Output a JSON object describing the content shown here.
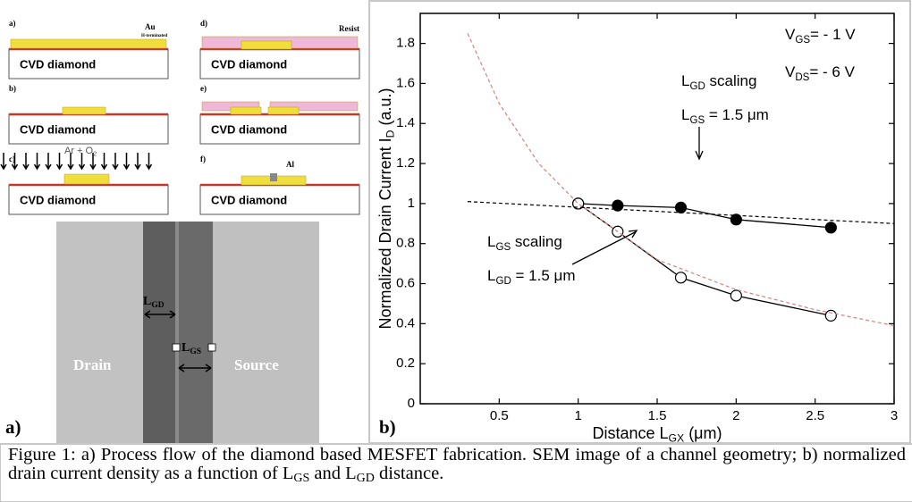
{
  "panel_a": {
    "steps": [
      {
        "label": "a)",
        "substrate": "CVD diamond",
        "notes": [
          [
            "Au"
          ],
          [
            "H-terminated"
          ]
        ]
      },
      {
        "label": "b)",
        "substrate": "CVD diamond"
      },
      {
        "label": "c)",
        "substrate": "CVD diamond",
        "notes": [
          [
            "Ar + O",
            "2"
          ]
        ]
      },
      {
        "label": "d)",
        "substrate": "CVD diamond",
        "notes": [
          [
            "Resist"
          ]
        ]
      },
      {
        "label": "e)",
        "substrate": "CVD diamond"
      },
      {
        "label": "f)",
        "substrate": "CVD diamond",
        "notes": [
          [
            "Al"
          ]
        ]
      }
    ],
    "sem": {
      "drain": "Drain",
      "source": "Source",
      "gap_labels": [
        [
          "L",
          "GD"
        ],
        [
          "L",
          "GS"
        ]
      ]
    },
    "panel_label": "a)"
  },
  "chart_data": {
    "type": "scatter",
    "panel_label": "b)",
    "x_label": [
      "Distance L",
      "GX",
      " (μm)"
    ],
    "y_label": [
      "Normalized Drain Current I",
      "D",
      " (a.u.)"
    ],
    "xlim": [
      0,
      3.0
    ],
    "ylim": [
      0,
      1.95
    ],
    "xticks": [
      0.5,
      1.0,
      1.5,
      2.0,
      2.5,
      3.0
    ],
    "yticks": [
      0.0,
      0.2,
      0.4,
      0.6,
      0.8,
      1.0,
      1.2,
      1.4,
      1.6,
      1.8
    ],
    "series": [
      {
        "color": "#000000",
        "marker": "filled",
        "line": "solid",
        "x": [
          1.0,
          1.25,
          1.65,
          2.0,
          2.6
        ],
        "values": [
          1.0,
          0.99,
          0.98,
          0.92,
          0.88
        ]
      },
      {
        "color": "#000000",
        "marker": "open",
        "line": "solid",
        "x": [
          1.0,
          1.25,
          1.65,
          2.0,
          2.6
        ],
        "values": [
          1.0,
          0.86,
          0.63,
          0.54,
          0.44
        ]
      },
      {
        "color": "#000000",
        "marker": "none",
        "line": "dashed",
        "x": [
          0.3,
          3.0
        ],
        "values": [
          1.01,
          0.9
        ]
      },
      {
        "color": "#d98080",
        "marker": "none",
        "line": "dashed",
        "x": [
          0.3,
          0.5,
          0.75,
          1.0,
          1.5,
          2.0,
          2.5,
          3.0
        ],
        "values": [
          1.85,
          1.5,
          1.2,
          1.0,
          0.72,
          0.57,
          0.47,
          0.39
        ]
      }
    ],
    "annotations": [
      [
        "V",
        "GS",
        "= - 1 V"
      ],
      [
        "V",
        "DS",
        "= - 6 V"
      ],
      [
        "L",
        "GD",
        " scaling"
      ],
      [
        "L",
        "GS",
        " = 1.5 μm"
      ],
      [
        "L",
        "GS",
        " scaling"
      ],
      [
        "L",
        "GD",
        " = 1.5 μm"
      ]
    ]
  },
  "caption": [
    "Figure 1: a) Process flow of the diamond based MESFET fabrication.  SEM image of a channel geometry; b) normalized drain current density as a function of L",
    "GS",
    " and L",
    "GD",
    " distance."
  ]
}
